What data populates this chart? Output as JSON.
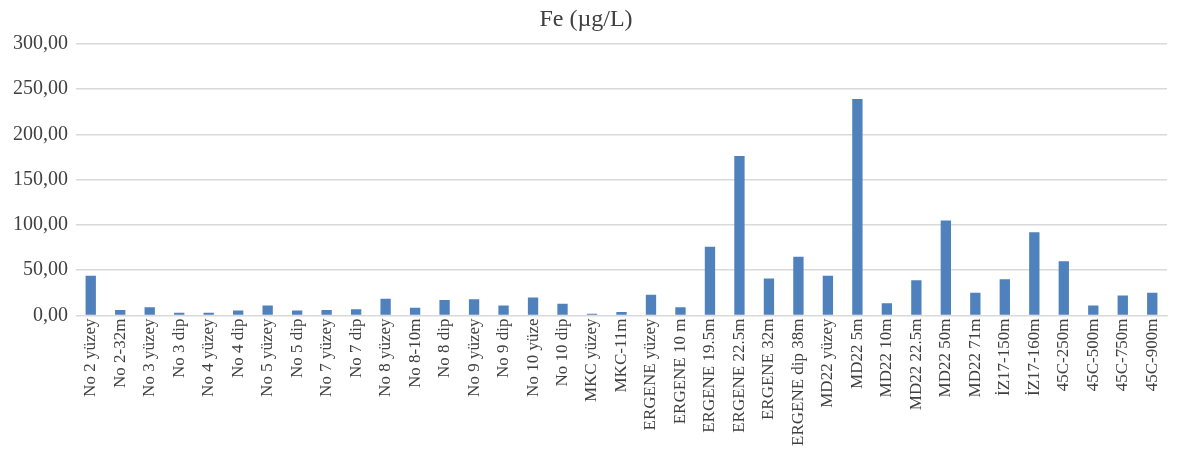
{
  "chart_data": {
    "type": "bar",
    "title": "Fe (µg/L)",
    "categories": [
      "No 2 yüzey",
      "No 2-32m",
      "No 3 yüzey",
      "No 3 dip",
      "No 4 yüzey",
      "No 4 dip",
      "No 5 yüzey",
      "No 5 dip",
      "No 7 yüzey",
      "No 7 dip",
      "No 8 yüzey",
      "No 8-10m",
      "No 8 dip",
      "No 9 yüzey",
      "No 9 dip",
      "No 10 yüze",
      "No 10 dip",
      "MKC yüzey",
      "MKC-11m",
      "ERGENE yüzey",
      "ERGENE 10 m",
      "ERGENE 19.5m",
      "ERGENE 22.5m",
      "ERGENE 32m",
      "ERGENE dip 38m",
      "MD22 yüzey",
      "MD22 5m",
      "MD22 10m",
      "MD22 22.5m",
      "MD22 50m",
      "MD22 71m",
      "İZ17-150m",
      "İZ17-160m",
      "45C-250m",
      "45C-500m",
      "45C-750m",
      "45C-900m"
    ],
    "values": [
      44,
      6,
      9,
      3,
      3,
      5.5,
      11,
      5.5,
      6,
      7,
      18.5,
      8.5,
      17,
      18,
      11,
      20,
      13,
      2,
      4,
      23,
      9,
      76,
      176,
      41,
      65,
      44,
      239,
      13.5,
      39,
      105,
      25,
      40,
      92,
      60,
      11,
      22,
      25
    ],
    "color": "#4f81bd",
    "ylim": [
      0,
      300
    ],
    "yticks": [
      {
        "value": 0,
        "label": "0,00"
      },
      {
        "value": 50,
        "label": "50,00"
      },
      {
        "value": 100,
        "label": "100,00"
      },
      {
        "value": 150,
        "label": "150,00"
      },
      {
        "value": 200,
        "label": "200,00"
      },
      {
        "value": 250,
        "label": "250,00"
      },
      {
        "value": 300,
        "label": "300,00"
      }
    ],
    "grid": "y",
    "legend": false
  }
}
